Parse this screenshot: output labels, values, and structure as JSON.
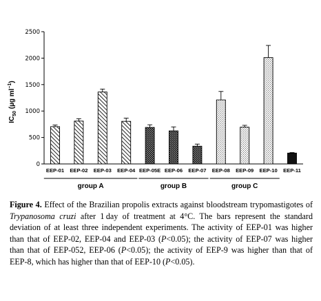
{
  "chart_data": {
    "type": "bar",
    "ylabel_main": "IC",
    "ylabel_sub": "50",
    "ylabel_unit": " (µg ml",
    "ylabel_exp": "−1",
    "ylabel_close": ")",
    "ylim": [
      0,
      2500
    ],
    "yticks": [
      0,
      500,
      1000,
      1500,
      2000,
      2500
    ],
    "grid": false,
    "categories": [
      "EEP-01",
      "EEP-02",
      "EEP-03",
      "EEP-04",
      "EEP-05E",
      "EEP-06",
      "EEP-07",
      "EEP-08",
      "EEP-09",
      "EEP-10",
      "EEP-11"
    ],
    "values": [
      705,
      810,
      1360,
      805,
      690,
      625,
      335,
      1210,
      695,
      2010,
      205
    ],
    "errors": [
      30,
      45,
      55,
      60,
      50,
      75,
      40,
      160,
      35,
      230,
      10
    ],
    "patterns": [
      "diag-a",
      "diag-a",
      "diag-a",
      "diag-a",
      "dense-b",
      "dense-b",
      "dense-b",
      "dots-c",
      "dots-c",
      "dots-c",
      "solid"
    ],
    "groups": [
      {
        "label": "group A",
        "from": 0,
        "to": 3
      },
      {
        "label": "group B",
        "from": 4,
        "to": 6
      },
      {
        "label": "group C",
        "from": 7,
        "to": 9
      }
    ]
  },
  "caption": {
    "fig_label": "Figure 4.",
    "t1": " Effect of the Brazilian propolis extracts against bloodstream trypomastigotes of ",
    "species": "Trypanosoma cruzi",
    "t2": " after 1 day of treatment at 4°C. The bars represent the standard deviation of at least three independent experiments. The activity of EEP-01 was higher than that of EEP-02, EEP-04 and EEP-03 (",
    "p1": "P",
    "t3": "<0.05); the activity of EEP-07 was higher than that of EEP-052, EEP-06 (",
    "p2": "P",
    "t4": "<0.05); the activity of EEP-9 was higher than that of EEP-8, which has higher than that of EEP-10 (",
    "p3": "P",
    "t5": "<0.05)."
  }
}
